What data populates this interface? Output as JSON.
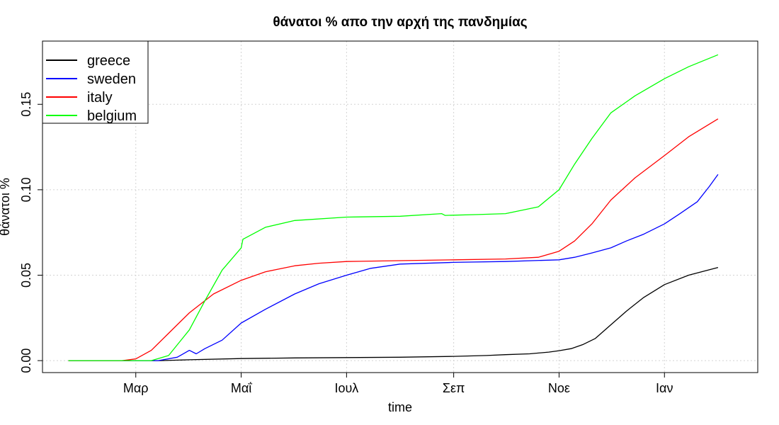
{
  "chart_data": {
    "type": "line",
    "title": "θάνατοι % απο την αρχή της πανδημίας",
    "xlabel": "time",
    "ylabel": "θάνατοι %",
    "x_tick_labels": [
      "Μαρ",
      "Μαΐ",
      "Ιουλ",
      "Σεπ",
      "Νοε",
      "Ιαν"
    ],
    "x_tick_dates": [
      "2020-03-01",
      "2020-05-01",
      "2020-07-01",
      "2020-09-01",
      "2020-11-01",
      "2021-01-01"
    ],
    "y_ticks": [
      0.0,
      0.05,
      0.1,
      0.15
    ],
    "y_tick_labels": [
      "0.00",
      "0.05",
      "0.10",
      "0.15"
    ],
    "xlim": [
      "2020-01-07",
      "2021-02-24"
    ],
    "ylim": [
      -0.007,
      0.187
    ],
    "grid": true,
    "legend_position": "top-left",
    "series": [
      {
        "name": "greece",
        "color": "#000000",
        "x": [
          "2020-01-22",
          "2020-03-15",
          "2020-04-01",
          "2020-05-01",
          "2020-06-01",
          "2020-07-01",
          "2020-08-01",
          "2020-09-01",
          "2020-09-20",
          "2020-10-01",
          "2020-10-15",
          "2020-10-26",
          "2020-11-01",
          "2020-11-08",
          "2020-11-15",
          "2020-11-22",
          "2020-12-01",
          "2020-12-10",
          "2020-12-20",
          "2021-01-01",
          "2021-01-15",
          "2021-02-01"
        ],
        "y": [
          0.0,
          0.0,
          0.0005,
          0.0012,
          0.0016,
          0.0018,
          0.002,
          0.0025,
          0.003,
          0.0035,
          0.004,
          0.005,
          0.0058,
          0.007,
          0.0095,
          0.013,
          0.021,
          0.029,
          0.037,
          0.0445,
          0.05,
          0.0545
        ]
      },
      {
        "name": "sweden",
        "color": "#0000ff",
        "x": [
          "2020-01-22",
          "2020-03-14",
          "2020-03-25",
          "2020-04-01",
          "2020-04-05",
          "2020-04-10",
          "2020-04-20",
          "2020-05-01",
          "2020-05-15",
          "2020-06-01",
          "2020-06-15",
          "2020-07-01",
          "2020-07-15",
          "2020-08-01",
          "2020-09-01",
          "2020-10-01",
          "2020-11-01",
          "2020-11-10",
          "2020-11-20",
          "2020-12-01",
          "2020-12-10",
          "2020-12-20",
          "2021-01-01",
          "2021-01-10",
          "2021-01-20",
          "2021-01-27",
          "2021-02-01"
        ],
        "y": [
          0.0,
          0.0,
          0.002,
          0.006,
          0.004,
          0.007,
          0.012,
          0.022,
          0.03,
          0.039,
          0.045,
          0.05,
          0.054,
          0.0565,
          0.0575,
          0.058,
          0.059,
          0.0605,
          0.063,
          0.066,
          0.07,
          0.074,
          0.08,
          0.086,
          0.093,
          0.102,
          0.109
        ]
      },
      {
        "name": "italy",
        "color": "#ff0000",
        "x": [
          "2020-01-22",
          "2020-02-22",
          "2020-03-01",
          "2020-03-10",
          "2020-03-20",
          "2020-04-01",
          "2020-04-15",
          "2020-05-01",
          "2020-05-15",
          "2020-06-01",
          "2020-06-15",
          "2020-07-01",
          "2020-08-01",
          "2020-09-01",
          "2020-10-01",
          "2020-10-20",
          "2020-11-01",
          "2020-11-10",
          "2020-11-20",
          "2020-12-01",
          "2020-12-15",
          "2021-01-01",
          "2021-01-15",
          "2021-02-01"
        ],
        "y": [
          0.0,
          0.0,
          0.001,
          0.006,
          0.016,
          0.028,
          0.039,
          0.047,
          0.052,
          0.0555,
          0.057,
          0.058,
          0.0585,
          0.059,
          0.0595,
          0.0605,
          0.064,
          0.07,
          0.08,
          0.094,
          0.107,
          0.12,
          0.131,
          0.1415
        ]
      },
      {
        "name": "belgium",
        "color": "#00ff00",
        "x": [
          "2020-01-22",
          "2020-03-10",
          "2020-03-20",
          "2020-04-01",
          "2020-04-10",
          "2020-04-20",
          "2020-05-01",
          "2020-05-02",
          "2020-05-15",
          "2020-06-01",
          "2020-07-01",
          "2020-08-01",
          "2020-08-25",
          "2020-08-27",
          "2020-09-15",
          "2020-10-01",
          "2020-10-20",
          "2020-11-01",
          "2020-11-10",
          "2020-11-20",
          "2020-12-01",
          "2020-12-15",
          "2021-01-01",
          "2021-01-15",
          "2021-02-01"
        ],
        "y": [
          0.0,
          0.0,
          0.003,
          0.018,
          0.035,
          0.053,
          0.066,
          0.071,
          0.078,
          0.082,
          0.084,
          0.0845,
          0.086,
          0.085,
          0.0855,
          0.086,
          0.09,
          0.1,
          0.115,
          0.13,
          0.145,
          0.155,
          0.165,
          0.172,
          0.179
        ]
      }
    ]
  }
}
